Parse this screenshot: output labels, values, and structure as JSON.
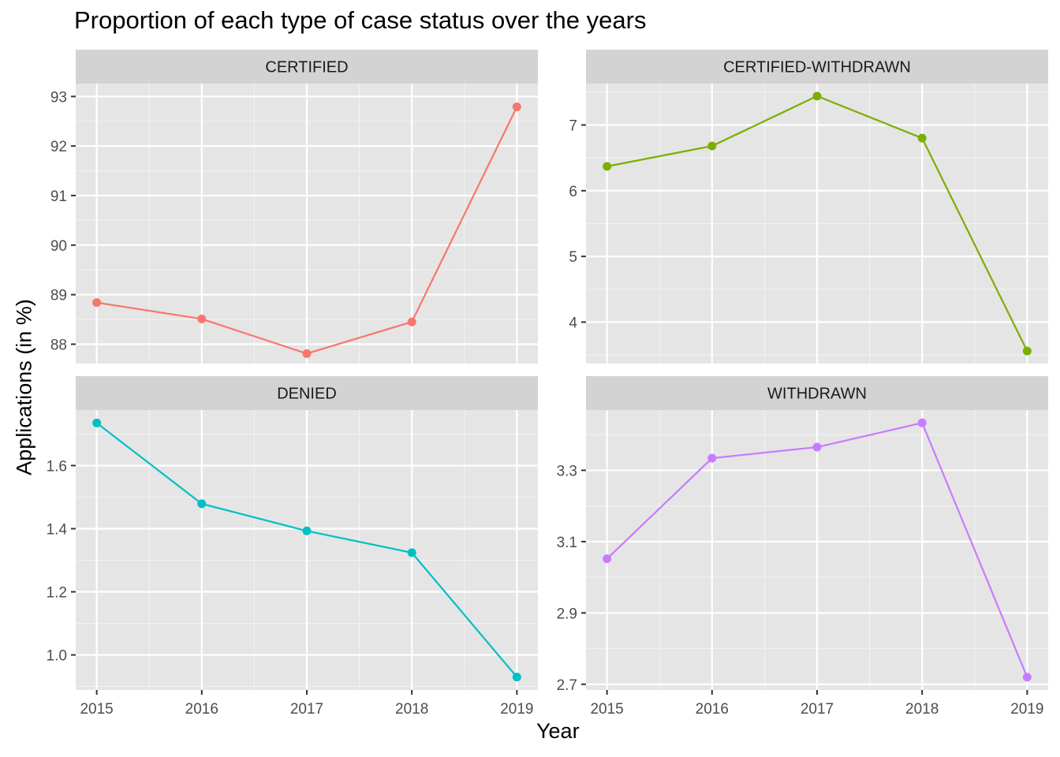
{
  "chart_data": {
    "type": "line",
    "title": "Proportion of each type of case status over the years",
    "xlabel": "Year",
    "ylabel": "Applications (in %)",
    "x": [
      2015,
      2016,
      2017,
      2018,
      2019
    ],
    "x_ticks": [
      "2015",
      "2016",
      "2017",
      "2018",
      "2019"
    ],
    "grid": true,
    "legend": "none",
    "background": "#E5E5E5",
    "strip_background": "#D3D3D3",
    "panels": [
      {
        "name": "CERTIFIED",
        "color": "#F8766D",
        "values": [
          88.84,
          88.51,
          87.81,
          88.45,
          92.79
        ],
        "ylim": [
          87.61,
          93.26
        ],
        "yticks": [
          88,
          89,
          90,
          91,
          92,
          93
        ],
        "ytick_labels": [
          "88",
          "89",
          "90",
          "91",
          "92",
          "93"
        ]
      },
      {
        "name": "CERTIFIED-WITHDRAWN",
        "color": "#7CAE00",
        "values": [
          6.37,
          6.68,
          7.44,
          6.8,
          3.56
        ],
        "ylim": [
          3.37,
          7.63
        ],
        "yticks": [
          4,
          5,
          6,
          7
        ],
        "ytick_labels": [
          "4",
          "5",
          "6",
          "7"
        ]
      },
      {
        "name": "DENIED",
        "color": "#00BFC4",
        "values": [
          1.735,
          1.479,
          1.393,
          1.324,
          0.93
        ],
        "ylim": [
          0.889,
          1.776
        ],
        "yticks": [
          1.0,
          1.2,
          1.4,
          1.6
        ],
        "ytick_labels": [
          "1.0",
          "1.2",
          "1.4",
          "1.6"
        ]
      },
      {
        "name": "WITHDRAWN",
        "color": "#C77CFF",
        "values": [
          3.052,
          3.334,
          3.365,
          3.433,
          2.72
        ],
        "ylim": [
          2.684,
          3.469
        ],
        "yticks": [
          2.7,
          2.9,
          3.1,
          3.3
        ],
        "ytick_labels": [
          "2.7",
          "2.9",
          "3.1",
          "3.3"
        ]
      }
    ]
  }
}
